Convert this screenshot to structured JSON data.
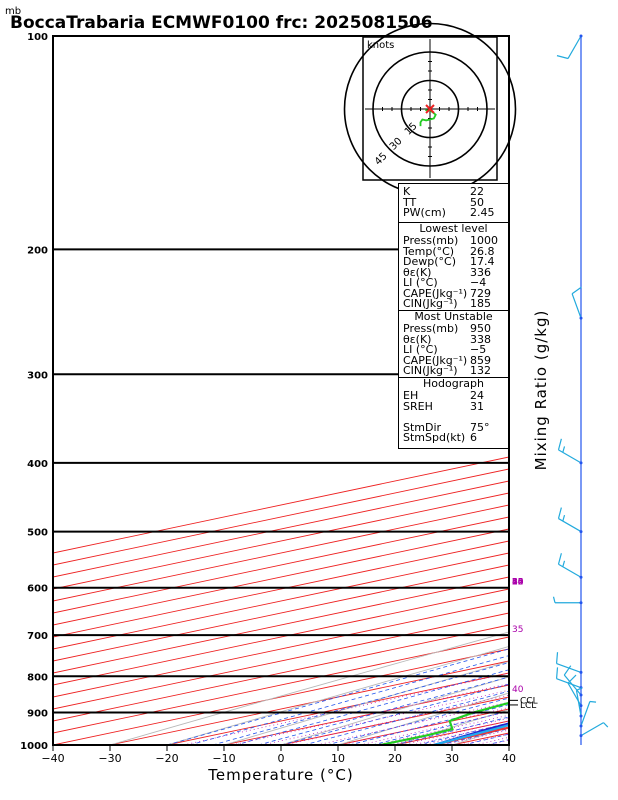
{
  "title": "BoccaTrabaria ECMWF0100 frc: 2025081506",
  "pressure_unit": "mb",
  "chart_data": {
    "type": "line",
    "title": "BoccaTrabaria ECMWF0100 frc: 2025081506",
    "xlabel": "Temperature (°C)",
    "ylabel": "Mixing Ratio (g/kg)",
    "xlim": [
      -40,
      40
    ],
    "ylim": [
      1000,
      100
    ],
    "yscale": "log",
    "x_ticks": [
      "−40",
      "−30",
      "−20",
      "−10",
      "0",
      "10",
      "20",
      "30",
      "40"
    ],
    "x_tick_values": [
      -40,
      -30,
      -20,
      -10,
      0,
      10,
      20,
      30,
      40
    ],
    "y_ticks": [
      "100",
      "200",
      "300",
      "400",
      "500",
      "600",
      "700",
      "800",
      "900",
      "1000"
    ],
    "y_tick_values": [
      100,
      200,
      300,
      400,
      500,
      600,
      700,
      800,
      900,
      1000
    ],
    "mixing_ratio_labels": [
      {
        "p": 600,
        "w": 1,
        "label": "1"
      },
      {
        "p": 600,
        "w": 2,
        "label": "2"
      },
      {
        "p": 600,
        "w": 3,
        "label": "3"
      },
      {
        "p": 600,
        "w": 4,
        "label": "4"
      },
      {
        "p": 600,
        "w": 6,
        "label": "6"
      },
      {
        "p": 600,
        "w": 8,
        "label": "8"
      },
      {
        "p": 600,
        "w": 10,
        "label": "10"
      },
      {
        "p": 600,
        "w": 12,
        "label": "12"
      },
      {
        "p": 600,
        "w": 14,
        "label": "14"
      },
      {
        "p": 600,
        "w": 16,
        "label": "16"
      },
      {
        "p": 600,
        "w": 18,
        "label": "18"
      },
      {
        "p": 600,
        "w": 20,
        "label": "20"
      },
      {
        "p": 600,
        "w": 25,
        "label": "25"
      },
      {
        "p": 600,
        "w": 30,
        "label": "30"
      },
      {
        "p": 700,
        "w": 35,
        "label": "35"
      },
      {
        "p": 850,
        "w": 40,
        "label": "40"
      }
    ],
    "series": [
      {
        "name": "temperature",
        "color": "#ee3333",
        "p": [
          1000,
          950,
          925,
          900,
          850,
          800,
          700,
          600,
          500,
          400,
          300,
          250,
          200,
          150,
          100
        ],
        "t": [
          26.8,
          25.5,
          25.6,
          23.5,
          20.5,
          17.6,
          10.8,
          4.2,
          -5.2,
          -17.2,
          -32.4,
          -41.8,
          -53.2,
          -60.4,
          -66.6
        ]
      },
      {
        "name": "dewpoint",
        "color": "#22cc22",
        "p": [
          1000,
          970,
          950,
          925,
          900,
          850,
          800,
          700,
          600,
          500,
          400,
          300,
          250,
          200,
          150,
          100
        ],
        "t": [
          17.4,
          17.6,
          16.9,
          9.6,
          6.7,
          3.4,
          0.8,
          -13.3,
          -27.0,
          -20.4,
          -25.8,
          -40.4,
          -54.6,
          -61.7,
          -69.7,
          -77.9
        ]
      },
      {
        "name": "parcel",
        "color": "#2222cc",
        "p": [
          1000,
          950,
          900,
          850,
          800,
          700,
          600,
          500,
          400,
          300,
          250,
          200,
          150,
          120
        ],
        "t": [
          26.8,
          23.1,
          20.1,
          18.5,
          16.3,
          11.7,
          6.3,
          -1.4,
          -12.2,
          -28.6,
          -39.5,
          -53.7,
          -71.1,
          -83.6
        ]
      },
      {
        "name": "parcel-unstable",
        "color": "#22aaee",
        "p": [
          1000,
          950,
          900,
          850,
          800,
          700,
          600,
          500,
          400,
          300,
          250,
          200,
          150,
          120
        ],
        "t": [
          26.8,
          24.2,
          20.8,
          19.0,
          16.7,
          12.0,
          6.8,
          -0.3,
          -11.0,
          -27.0,
          -38.2,
          -52.3,
          -70.0,
          -82.7
        ]
      }
    ],
    "wind_barbs": [
      {
        "p": 100,
        "dir": 210,
        "spd": 10
      },
      {
        "p": 250,
        "dir": 340,
        "spd": 10
      },
      {
        "p": 400,
        "dir": 300,
        "spd": 15
      },
      {
        "p": 500,
        "dir": 300,
        "spd": 15
      },
      {
        "p": 580,
        "dir": 300,
        "spd": 15
      },
      {
        "p": 630,
        "dir": 270,
        "spd": 5
      },
      {
        "p": 790,
        "dir": 290,
        "spd": 10
      },
      {
        "p": 830,
        "dir": 290,
        "spd": 10
      },
      {
        "p": 850,
        "dir": 320,
        "spd": 10
      },
      {
        "p": 880,
        "dir": 330,
        "spd": 10
      },
      {
        "p": 910,
        "dir": 350,
        "spd": 5
      },
      {
        "p": 940,
        "dir": 20,
        "spd": 5
      },
      {
        "p": 970,
        "dir": 60,
        "spd": 5
      }
    ],
    "level_markers": [
      {
        "p": 865,
        "label": "CCL"
      },
      {
        "p": 878,
        "label": "LCL"
      }
    ]
  },
  "hodograph": {
    "unit_label": "knots",
    "ring_labels": [
      "15",
      "30",
      "45"
    ],
    "points_u": [
      -5.0,
      -5.0,
      -4.0,
      -2.0,
      2.0,
      3.0,
      0.5,
      -2.5
    ],
    "points_v": [
      -9.0,
      -7.0,
      -5.5,
      -6.0,
      -5.0,
      -3.0,
      -1.0,
      -0.5
    ]
  },
  "indices": {
    "k_label": "K",
    "k": "22",
    "tt_label": "TT",
    "tt": "50",
    "pw_label": "PW(cm)",
    "pw": "2.45"
  },
  "lowest_level": {
    "header": "Lowest level",
    "rows": [
      {
        "label": "Press(mb)",
        "value": "1000"
      },
      {
        "label": "Temp(°C)",
        "value": "26.8"
      },
      {
        "label": "Dewp(°C)",
        "value": "17.4"
      },
      {
        "label": "θε(K)",
        "value": "336"
      },
      {
        "label": "LI (°C)",
        "value": "−4"
      },
      {
        "label": "CAPE(Jkg⁻¹)",
        "value": "729"
      },
      {
        "label": "CIN(Jkg⁻¹)",
        "value": "185"
      }
    ]
  },
  "most_unstable": {
    "header": "Most Unstable",
    "rows": [
      {
        "label": "Press(mb)",
        "value": "950"
      },
      {
        "label": "θε(K)",
        "value": "338"
      },
      {
        "label": "LI (°C)",
        "value": "−5"
      },
      {
        "label": "CAPE(Jkg⁻¹)",
        "value": "859"
      },
      {
        "label": "CIN(Jkg⁻¹)",
        "value": "132"
      }
    ]
  },
  "hodograph_stats": {
    "header": "Hodograph",
    "rows": [
      {
        "label": "EH",
        "value": "24"
      },
      {
        "label": "SREH",
        "value": "31"
      },
      {
        "label": "",
        "value": ""
      },
      {
        "label": "StmDir",
        "value": "75°"
      },
      {
        "label": "StmSpd(kt)",
        "value": "6"
      }
    ]
  },
  "colors": {
    "isotherm": "#ee2222",
    "dry_adiabat": "#b8b8b8",
    "moist_adiabat": "#2255ee",
    "mixing_ratio": "#bb22bb",
    "mixing_label": "#aa00aa"
  }
}
